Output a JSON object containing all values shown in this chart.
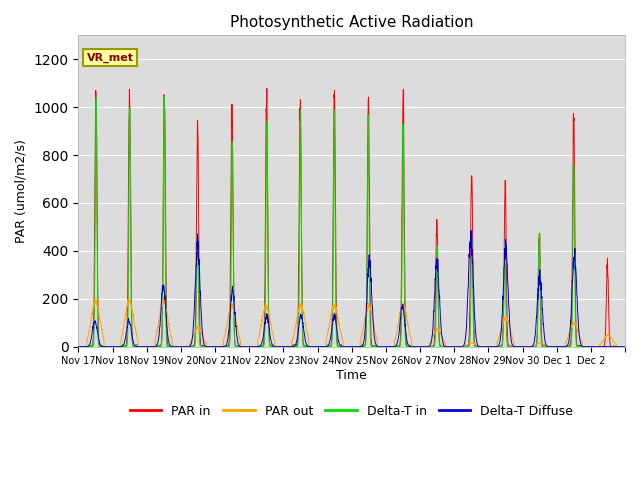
{
  "title": "Photosynthetic Active Radiation",
  "ylabel": "PAR (umol/m2/s)",
  "xlabel": "Time",
  "annotation": "VR_met",
  "colors": {
    "PAR in": "#ff0000",
    "PAR out": "#ffa500",
    "Delta-T in": "#00dd00",
    "Delta-T Diffuse": "#0000dd"
  },
  "legend_labels": [
    "PAR in",
    "PAR out",
    "Delta-T in",
    "Delta-T Diffuse"
  ],
  "ylim": [
    0,
    1300
  ],
  "yticks": [
    0,
    200,
    400,
    600,
    800,
    1000,
    1200
  ],
  "background_color": "#dcdcdc",
  "n_days": 16,
  "days": [
    "Nov 17",
    "Nov 18",
    "Nov 19",
    "Nov 20",
    "Nov 21",
    "Nov 22",
    "Nov 23",
    "Nov 24",
    "Nov 25",
    "Nov 26",
    "Nov 27",
    "Nov 28",
    "Nov 29",
    "Nov 30",
    "Dec 1",
    "Dec 2"
  ],
  "peaks_PAR_in": [
    1185,
    1190,
    1165,
    990,
    1070,
    1120,
    1120,
    1135,
    1130,
    1130,
    550,
    835,
    700,
    520,
    1050,
    380
  ],
  "peaks_PAR_out": [
    195,
    195,
    195,
    80,
    175,
    175,
    175,
    175,
    175,
    175,
    75,
    15,
    125,
    15,
    100,
    50
  ],
  "peaks_DeltaT_in": [
    1065,
    1075,
    1075,
    505,
    945,
    990,
    990,
    1005,
    1010,
    990,
    440,
    490,
    430,
    490,
    820,
    0
  ],
  "peaks_DeltaT_dif": [
    115,
    115,
    270,
    450,
    245,
    135,
    135,
    135,
    375,
    175,
    375,
    490,
    430,
    310,
    400,
    0
  ]
}
